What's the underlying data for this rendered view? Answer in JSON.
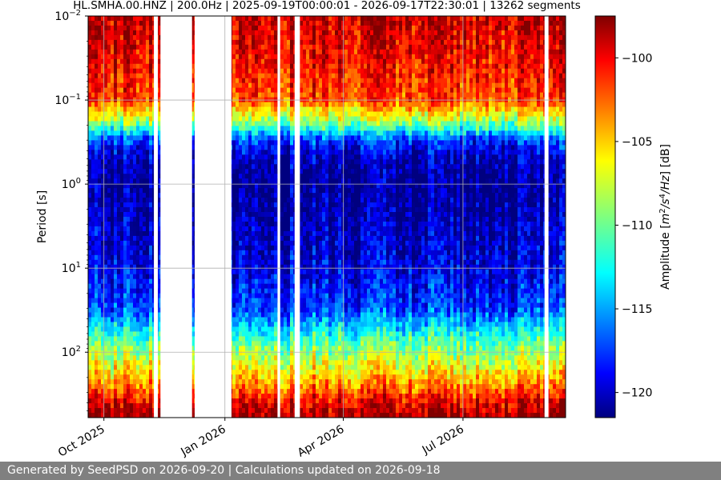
{
  "chart_data": {
    "type": "heatmap",
    "title": "HL.SMHA.00.HNZ | 200.0Hz | 2025-09-19T00:00:01 - 2026-09-17T22:30:01 | 13262 segments",
    "xlabel": "",
    "ylabel": "Period [s]",
    "colorbar_label": "Amplitude [m²/s⁴/Hz] [dB]",
    "colorbar_ticks": [
      "−100",
      "−105",
      "−110",
      "−115",
      "−120"
    ],
    "colorbar_tick_values": [
      -100,
      -105,
      -110,
      -115,
      -120
    ],
    "colorbar_range": [
      -121.5,
      -97.5
    ],
    "colormap": "jet",
    "x_range": [
      "2025-09-19",
      "2026-09-17"
    ],
    "x_ticks": [
      {
        "date": "2025-10-01",
        "label": "Oct 2025"
      },
      {
        "date": "2026-01-01",
        "label": "Jan 2026"
      },
      {
        "date": "2026-04-01",
        "label": "Apr 2026"
      },
      {
        "date": "2026-07-01",
        "label": "Jul 2026"
      }
    ],
    "y_scale": "log",
    "y_inverted": true,
    "y_range_s": [
      0.01,
      600
    ],
    "y_ticks": [
      {
        "value": 0.01,
        "base": "10",
        "exp": "−2"
      },
      {
        "value": 0.1,
        "base": "10",
        "exp": "−1"
      },
      {
        "value": 1,
        "base": "10",
        "exp": "0"
      },
      {
        "value": 10,
        "base": "10",
        "exp": "1"
      },
      {
        "value": 100,
        "base": "10",
        "exp": "2"
      }
    ],
    "grid": true,
    "data_gaps": [
      [
        "2025-11-08",
        "2025-11-11"
      ],
      [
        "2025-11-13",
        "2025-12-07"
      ],
      [
        "2025-12-09",
        "2026-01-06"
      ],
      [
        "2026-02-10",
        "2026-02-12"
      ],
      [
        "2026-02-23",
        "2026-02-27"
      ],
      [
        "2026-09-01",
        "2026-09-04"
      ]
    ],
    "amplitude_profile_db": [
      {
        "period_s": 0.01,
        "db": -99
      },
      {
        "period_s": 0.05,
        "db": -101
      },
      {
        "period_s": 0.1,
        "db": -102
      },
      {
        "period_s": 0.2,
        "db": -110
      },
      {
        "period_s": 0.3,
        "db": -117
      },
      {
        "period_s": 0.5,
        "db": -120
      },
      {
        "period_s": 1,
        "db": -121
      },
      {
        "period_s": 10,
        "db": -119
      },
      {
        "period_s": 30,
        "db": -117
      },
      {
        "period_s": 80,
        "db": -110
      },
      {
        "period_s": 200,
        "db": -105
      },
      {
        "period_s": 400,
        "db": -100
      },
      {
        "period_s": 600,
        "db": -98
      }
    ]
  },
  "footer": {
    "text": "Generated by SeedPSD on 2026-09-20 | Calculations updated on 2026-09-18"
  }
}
